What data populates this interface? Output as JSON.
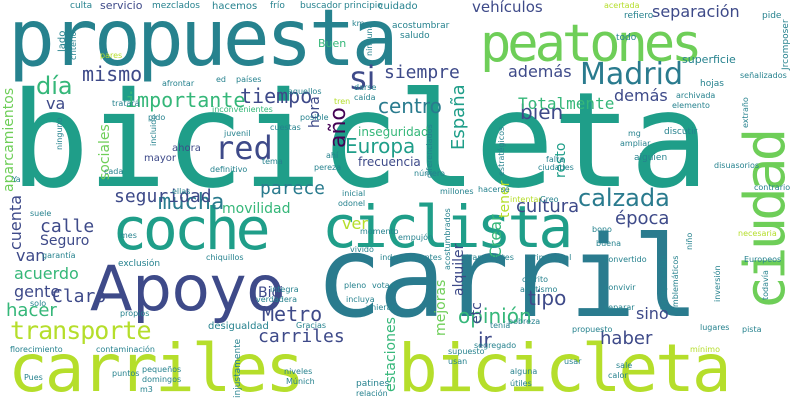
{
  "cloud": {
    "palette": [
      "#2a7b8e",
      "#1f9e89",
      "#35b779",
      "#6ece58",
      "#b5de2b",
      "#3e4a89",
      "#482878",
      "#26828e",
      "#440154"
    ],
    "words": [
      {
        "text": "bicicleta",
        "c": 1
      },
      {
        "text": "carril",
        "c": 0
      },
      {
        "text": "propuesta",
        "c": 7
      },
      {
        "text": "carriles",
        "c": 4
      },
      {
        "text": "bicicleta",
        "c": 4
      },
      {
        "text": "coche",
        "c": 1
      },
      {
        "text": "ciclista",
        "c": 1
      },
      {
        "text": "peatones",
        "c": 3
      },
      {
        "text": "Apoyo",
        "c": 5
      },
      {
        "text": "ciudad",
        "c": 3
      },
      {
        "text": "Madrid",
        "c": 0
      },
      {
        "text": "transporte",
        "c": 4
      },
      {
        "text": "día",
        "c": 2
      },
      {
        "text": "si",
        "c": 5
      },
      {
        "text": "mucha",
        "c": 0
      },
      {
        "text": "red",
        "c": 5
      },
      {
        "text": "calzada",
        "c": 0
      },
      {
        "text": "mismo",
        "c": 5
      },
      {
        "text": "tiempo",
        "c": 5
      },
      {
        "text": "importante",
        "c": 2
      },
      {
        "text": "año",
        "c": 8
      },
      {
        "text": "España",
        "c": 1
      },
      {
        "text": "Europa",
        "c": 1
      },
      {
        "text": "centro",
        "c": 0
      },
      {
        "text": "bien",
        "c": 5
      },
      {
        "text": "siempre",
        "c": 5
      },
      {
        "text": "además",
        "c": 5
      },
      {
        "text": "Totalmente",
        "c": 2
      },
      {
        "text": "separación",
        "c": 5
      },
      {
        "text": "vehículos",
        "c": 5
      },
      {
        "text": "seguridad",
        "c": 5
      },
      {
        "text": "parece",
        "c": 0
      },
      {
        "text": "cultura",
        "c": 5
      },
      {
        "text": "época",
        "c": 5
      },
      {
        "text": "carriles",
        "c": 5
      },
      {
        "text": "calle",
        "c": 5
      },
      {
        "text": "Seguro",
        "c": 5
      },
      {
        "text": "Claro",
        "c": 5
      },
      {
        "text": "tipo",
        "c": 5
      },
      {
        "text": "gente",
        "c": 5
      },
      {
        "text": "acuerdo",
        "c": 2
      },
      {
        "text": "Metro",
        "c": 5
      },
      {
        "text": "opinión",
        "c": 2
      },
      {
        "text": "haber",
        "c": 5
      },
      {
        "text": "hacer",
        "c": 2
      },
      {
        "text": "Bici",
        "c": 5
      },
      {
        "text": "van",
        "c": 5
      },
      {
        "text": "cuenta",
        "c": 5
      },
      {
        "text": "movilidad",
        "c": 2
      },
      {
        "text": "ver",
        "c": 4
      },
      {
        "text": "ir",
        "c": 5
      },
      {
        "text": "sino",
        "c": 5
      },
      {
        "text": "va",
        "c": 5
      },
      {
        "text": "demás",
        "c": 5
      },
      {
        "text": "inseguridad",
        "c": 2
      },
      {
        "text": "frecuencia",
        "c": 5
      },
      {
        "text": "alquiler",
        "c": 5
      },
      {
        "text": "estaciones",
        "c": 2
      },
      {
        "text": "mejoras",
        "c": 3
      },
      {
        "text": "Crear",
        "c": 2
      },
      {
        "text": "etc",
        "c": 5
      },
      {
        "text": "resto",
        "c": 1
      },
      {
        "text": "tener",
        "c": 4
      },
      {
        "text": "sociales",
        "c": 3
      },
      {
        "text": "aparcamientos",
        "c": 3
      },
      {
        "text": "hora",
        "c": 5
      },
      {
        "text": "servicio",
        "c": 5
      },
      {
        "text": "mezclados",
        "c": 7
      },
      {
        "text": "hacemos",
        "c": 7
      },
      {
        "text": "cuidado",
        "c": 7
      },
      {
        "text": "frío",
        "c": 7
      },
      {
        "text": "buscador",
        "c": 7
      },
      {
        "text": "principio",
        "c": 7
      },
      {
        "text": "culta",
        "c": 7
      },
      {
        "text": "acostumbrar",
        "c": 7
      },
      {
        "text": "saludo",
        "c": 7
      },
      {
        "text": "refiero",
        "c": 7
      },
      {
        "text": "todo",
        "c": 7
      },
      {
        "text": "pide",
        "c": 7
      },
      {
        "text": "acertada",
        "c": 4
      },
      {
        "text": "superficie",
        "c": 7
      },
      {
        "text": "señalizados",
        "c": 7
      },
      {
        "text": "Jrcomposer",
        "c": 7
      },
      {
        "text": "hojas",
        "c": 7
      },
      {
        "text": "archivada",
        "c": 7
      },
      {
        "text": "elemento",
        "c": 7
      },
      {
        "text": "Buen",
        "c": 2
      },
      {
        "text": "ninguna",
        "c": 7
      },
      {
        "text": "km",
        "c": 7
      },
      {
        "text": "lado",
        "c": 7
      },
      {
        "text": "criterio",
        "c": 7
      },
      {
        "text": "pares",
        "c": 4
      },
      {
        "text": "afrontar",
        "c": 7
      },
      {
        "text": "ed",
        "c": 7
      },
      {
        "text": "países",
        "c": 7
      },
      {
        "text": "inconvenientes",
        "c": 2
      },
      {
        "text": "aquellos",
        "c": 7
      },
      {
        "text": "darse",
        "c": 7
      },
      {
        "text": "caída",
        "c": 7
      },
      {
        "text": "tren",
        "c": 4
      },
      {
        "text": "tratará",
        "c": 7
      },
      {
        "text": "pido",
        "c": 7
      },
      {
        "text": "incluido",
        "c": 7
      },
      {
        "text": "ninguno",
        "c": 7
      },
      {
        "text": "juvenil",
        "c": 7
      },
      {
        "text": "cuestas",
        "c": 7
      },
      {
        "text": "posible",
        "c": 7
      },
      {
        "text": "diferenciados",
        "c": 7
      },
      {
        "text": "estratégicos",
        "c": 7
      },
      {
        "text": "mg",
        "c": 7
      },
      {
        "text": "discutir",
        "c": 7
      },
      {
        "text": "ampliar",
        "c": 7
      },
      {
        "text": "alguien",
        "c": 7
      },
      {
        "text": "ahora",
        "c": 5
      },
      {
        "text": "mayor",
        "c": 5
      },
      {
        "text": "cada",
        "c": 7
      },
      {
        "text": "definitivo",
        "c": 7
      },
      {
        "text": "tema",
        "c": 7
      },
      {
        "text": "ahí",
        "c": 7
      },
      {
        "text": "pereza",
        "c": 7
      },
      {
        "text": "número",
        "c": 7
      },
      {
        "text": "falta",
        "c": 7
      },
      {
        "text": "ciudades",
        "c": 7
      },
      {
        "text": "extraño",
        "c": 7
      },
      {
        "text": "contrario",
        "c": 7
      },
      {
        "text": "Ya",
        "c": 7
      },
      {
        "text": "suele",
        "c": 7
      },
      {
        "text": "ellas",
        "c": 7
      },
      {
        "text": "odonel",
        "c": 7
      },
      {
        "text": "inicial",
        "c": 7
      },
      {
        "text": "millones",
        "c": 7
      },
      {
        "text": "hacerse",
        "c": 7
      },
      {
        "text": "disuasorios",
        "c": 7
      },
      {
        "text": "intentar",
        "c": 4
      },
      {
        "text": "Creo",
        "c": 7
      },
      {
        "text": "momento",
        "c": 7
      },
      {
        "text": "empujón",
        "c": 7
      },
      {
        "text": "acostumbrados",
        "c": 7
      },
      {
        "text": "mes",
        "c": 7
      },
      {
        "text": "chiquillos",
        "c": 7
      },
      {
        "text": "vivido",
        "c": 7
      },
      {
        "text": "bono",
        "c": 7
      },
      {
        "text": "buena",
        "c": 7
      },
      {
        "text": "necesaria",
        "c": 4
      },
      {
        "text": "garantía",
        "c": 7
      },
      {
        "text": "exclusión",
        "c": 7
      },
      {
        "text": "independientes",
        "c": 7
      },
      {
        "text": "transeúntes",
        "c": 7
      },
      {
        "text": "primaveral",
        "c": 7
      },
      {
        "text": "convertido",
        "c": 7
      },
      {
        "text": "niño",
        "c": 7
      },
      {
        "text": "Europeos",
        "c": 7
      },
      {
        "text": "inversión",
        "c": 7
      },
      {
        "text": "todavía",
        "c": 7
      },
      {
        "text": "integra",
        "c": 7
      },
      {
        "text": "pleno",
        "c": 7
      },
      {
        "text": "votado",
        "c": 7
      },
      {
        "text": "carrito",
        "c": 7
      },
      {
        "text": "atletismo",
        "c": 7
      },
      {
        "text": "convivir",
        "c": 7
      },
      {
        "text": "incorporación",
        "c": 7
      },
      {
        "text": "emblemáticos",
        "c": 7
      },
      {
        "text": "solo",
        "c": 7
      },
      {
        "text": "verdadera",
        "c": 7
      },
      {
        "text": "incluya",
        "c": 7
      },
      {
        "text": "unieran",
        "c": 7
      },
      {
        "text": "separar",
        "c": 7
      },
      {
        "text": "propios",
        "c": 7
      },
      {
        "text": "desigualdad",
        "c": 7
      },
      {
        "text": "Gracias",
        "c": 7
      },
      {
        "text": "pobreza",
        "c": 7
      },
      {
        "text": "tenía",
        "c": 7
      },
      {
        "text": "propuesto",
        "c": 7
      },
      {
        "text": "lugares",
        "c": 7
      },
      {
        "text": "pista",
        "c": 7
      },
      {
        "text": "florecimiento",
        "c": 7
      },
      {
        "text": "contaminación",
        "c": 7
      },
      {
        "text": "segregado",
        "c": 7
      },
      {
        "text": "supuesto",
        "c": 7
      },
      {
        "text": "usan",
        "c": 7
      },
      {
        "text": "usar",
        "c": 7
      },
      {
        "text": "mínimo",
        "c": 4
      },
      {
        "text": "Pues",
        "c": 7
      },
      {
        "text": "puntos",
        "c": 7
      },
      {
        "text": "pequeños",
        "c": 7
      },
      {
        "text": "domingos",
        "c": 7
      },
      {
        "text": "m3",
        "c": 7
      },
      {
        "text": "niveles",
        "c": 7
      },
      {
        "text": "Múnich",
        "c": 7
      },
      {
        "text": "injustamente",
        "c": 7
      },
      {
        "text": "patines",
        "c": 7
      },
      {
        "text": "relación",
        "c": 7
      },
      {
        "text": "alguna",
        "c": 7
      },
      {
        "text": "útiles",
        "c": 7
      },
      {
        "text": "sale",
        "c": 7
      },
      {
        "text": "calor",
        "c": 7
      }
    ]
  }
}
